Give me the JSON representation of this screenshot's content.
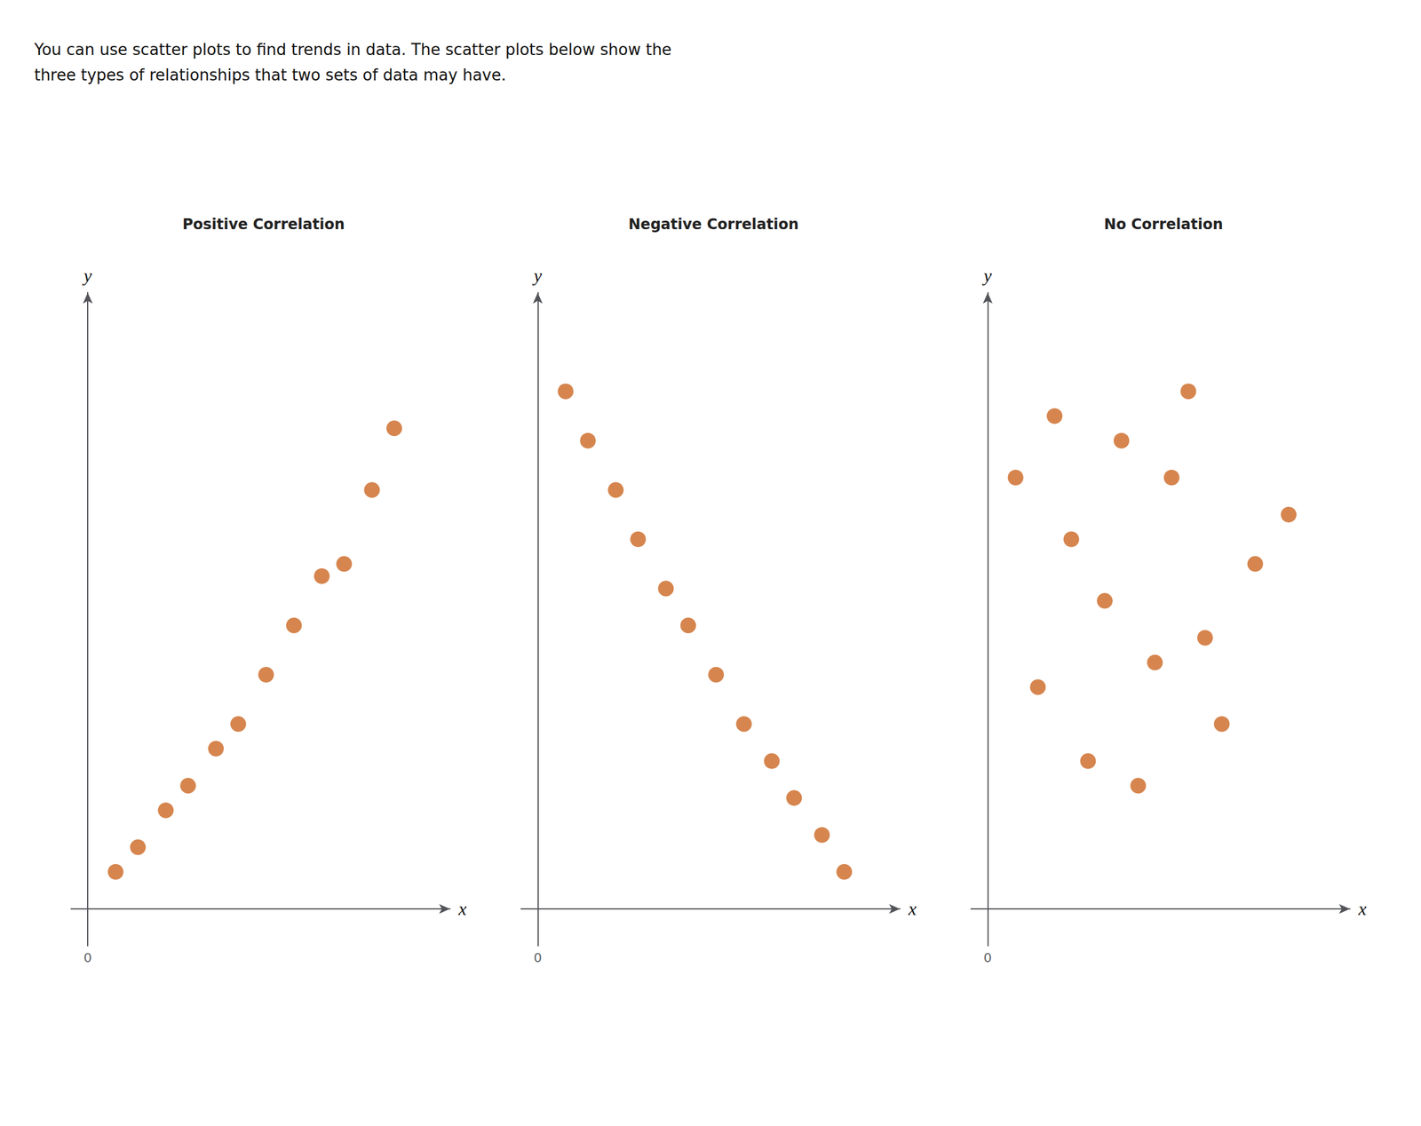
{
  "title": "You can use scatter plots to find trends in data. The scatter plots below show the\nthree types of relationships that two sets of data may have.",
  "chart_data": [
    {
      "type": "scatter",
      "title": "Positive Correlation",
      "x": [
        0.5,
        0.9,
        1.4,
        1.8,
        2.3,
        2.7,
        3.2,
        3.7,
        4.2,
        4.6,
        5.1,
        5.5
      ],
      "values": [
        0.3,
        0.5,
        0.8,
        1.0,
        1.3,
        1.5,
        1.9,
        2.3,
        2.7,
        2.8,
        3.4,
        3.9
      ],
      "color": "#cc6622",
      "marker": "circle",
      "x_label": "x",
      "y_label": "y",
      "xlim": [
        -0.3,
        6.5
      ],
      "ylim": [
        -0.3,
        5.0
      ],
      "xticks": [
        0
      ],
      "yticks": [
        0
      ],
      "grid": false,
      "tick_labels": "x"
    },
    {
      "type": "scatter",
      "title": "Negative Correlation",
      "x": [
        0.5,
        0.9,
        1.4,
        1.8,
        2.3,
        2.7,
        3.2,
        3.7,
        4.2,
        4.6,
        5.1,
        5.5
      ],
      "values": [
        4.2,
        3.8,
        3.4,
        3.0,
        2.6,
        2.3,
        1.9,
        1.5,
        1.2,
        0.9,
        0.6,
        0.3
      ],
      "color": "#cc6622",
      "marker": "circle",
      "x_label": "x",
      "y_label": "y",
      "xlim": [
        -0.3,
        6.5
      ],
      "ylim": [
        -0.3,
        5.0
      ],
      "xticks": [
        0
      ],
      "yticks": [
        0
      ],
      "grid": false,
      "tick_labels": "x"
    },
    {
      "type": "scatter",
      "title": "No Correlation",
      "x": [
        0.5,
        1.2,
        1.8,
        2.4,
        3.0,
        3.6,
        4.2,
        4.8,
        5.4,
        0.9,
        1.5,
        2.1,
        2.7,
        3.3,
        3.9
      ],
      "values": [
        3.5,
        4.0,
        1.2,
        3.8,
        2.0,
        4.2,
        1.5,
        2.8,
        3.2,
        1.8,
        3.0,
        2.5,
        1.0,
        3.5,
        2.2
      ],
      "color": "#cc6622",
      "marker": "circle",
      "x_label": "x",
      "y_label": "y",
      "xlim": [
        -0.3,
        6.5
      ],
      "ylim": [
        -0.3,
        5.0
      ],
      "xticks": [
        0
      ],
      "yticks": [
        0
      ],
      "grid": false,
      "tick_labels": "x"
    }
  ]
}
